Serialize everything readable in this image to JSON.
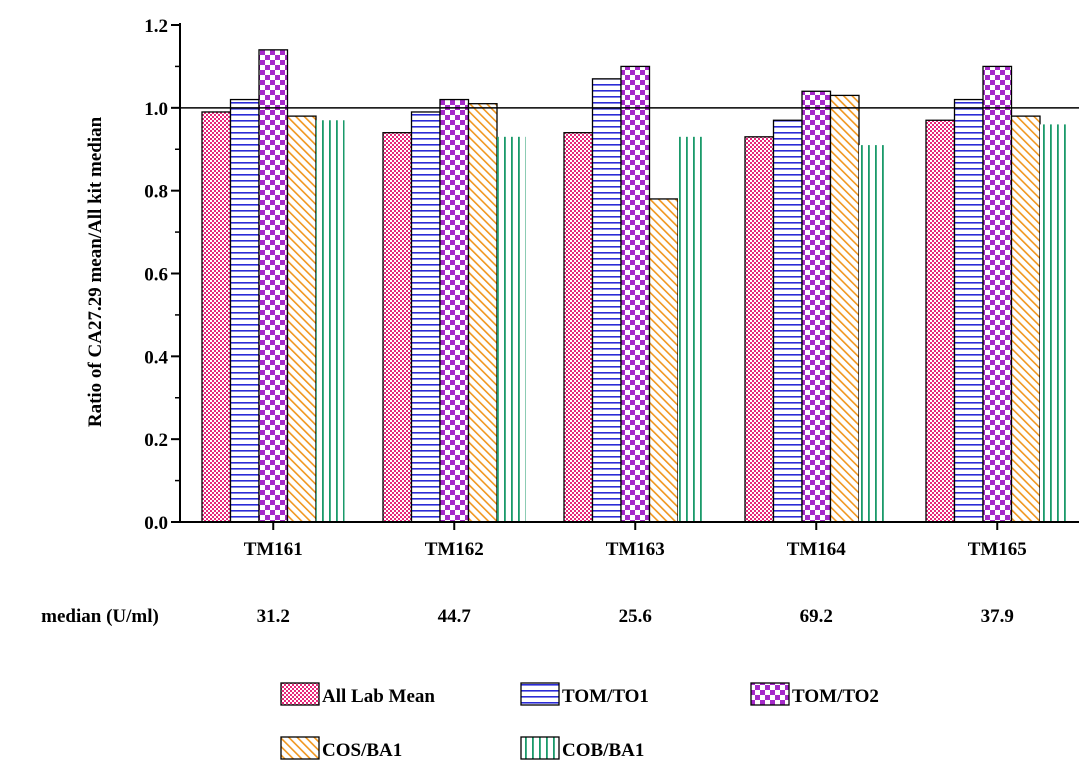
{
  "chart_data": {
    "type": "bar",
    "title": "",
    "xlabel": "",
    "ylabel": "Ratio of CA27.29 mean/All kit median",
    "ylim": [
      0,
      1.2
    ],
    "y_ticks": [
      "0.0",
      "0.2",
      "0.4",
      "0.6",
      "0.8",
      "1.0",
      "1.2"
    ],
    "reference_line": 1.0,
    "categories": [
      "TM161",
      "TM162",
      "TM163",
      "TM164",
      "TM165"
    ],
    "series": [
      {
        "name": "All Lab Mean",
        "values": [
          0.99,
          0.94,
          0.94,
          0.93,
          0.97
        ],
        "color": "#e8267a",
        "pattern": "dots"
      },
      {
        "name": "TOM/TO1",
        "values": [
          1.02,
          0.99,
          1.07,
          0.97,
          1.02
        ],
        "color": "#2b2bd6",
        "pattern": "horizontal-lines"
      },
      {
        "name": "TOM/TO2",
        "values": [
          1.14,
          1.02,
          1.1,
          1.04,
          1.1
        ],
        "color": "#a52ac9",
        "pattern": "checker"
      },
      {
        "name": "COS/BA1",
        "values": [
          0.98,
          1.01,
          0.78,
          1.03,
          0.98
        ],
        "color": "#f0961e",
        "pattern": "diagonal-lines"
      },
      {
        "name": "COB/BA1",
        "values": [
          0.97,
          0.93,
          0.93,
          0.91,
          0.96
        ],
        "color": "#1a9a6a",
        "pattern": "vertical-lines"
      }
    ],
    "median_row": {
      "label": "median (U/ml)",
      "values": [
        "31.2",
        "44.7",
        "25.6",
        "69.2",
        "37.9"
      ]
    },
    "grid": false,
    "legend_position": "bottom"
  }
}
